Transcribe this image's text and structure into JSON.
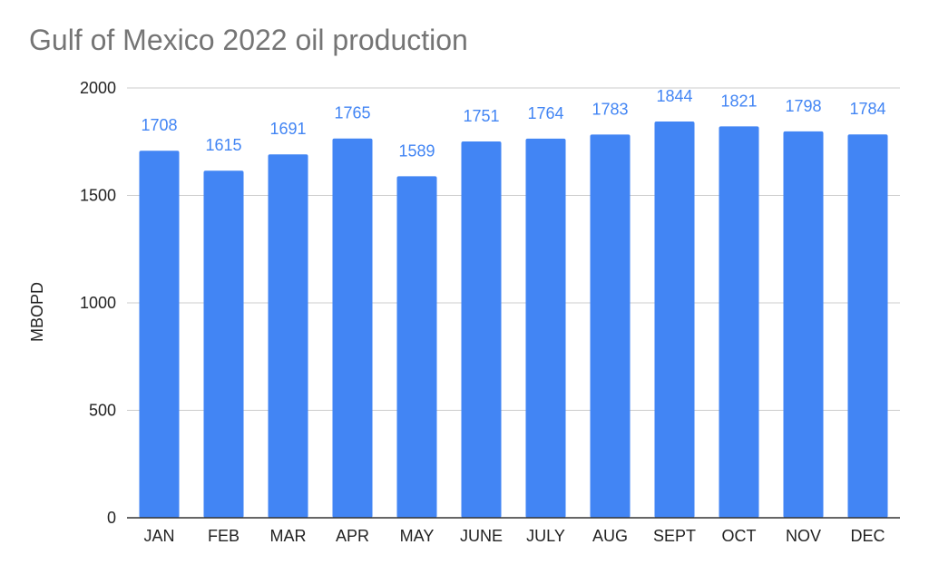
{
  "chart_data": {
    "type": "bar",
    "title": "Gulf of Mexico 2022 oil production",
    "xlabel": "",
    "ylabel": "MBOPD",
    "categories": [
      "JAN",
      "FEB",
      "MAR",
      "APR",
      "MAY",
      "JUNE",
      "JULY",
      "AUG",
      "SEPT",
      "OCT",
      "NOV",
      "DEC"
    ],
    "values": [
      1708,
      1615,
      1691,
      1765,
      1589,
      1751,
      1764,
      1783,
      1844,
      1821,
      1798,
      1784
    ],
    "ylim": [
      0,
      2000
    ],
    "yticks": [
      0,
      500,
      1000,
      1500,
      2000
    ],
    "grid": true,
    "data_labels": true,
    "bar_color": "#4285f4",
    "label_color": "#4285f4",
    "grid_color": "#cccccc",
    "title_color": "#757575"
  }
}
